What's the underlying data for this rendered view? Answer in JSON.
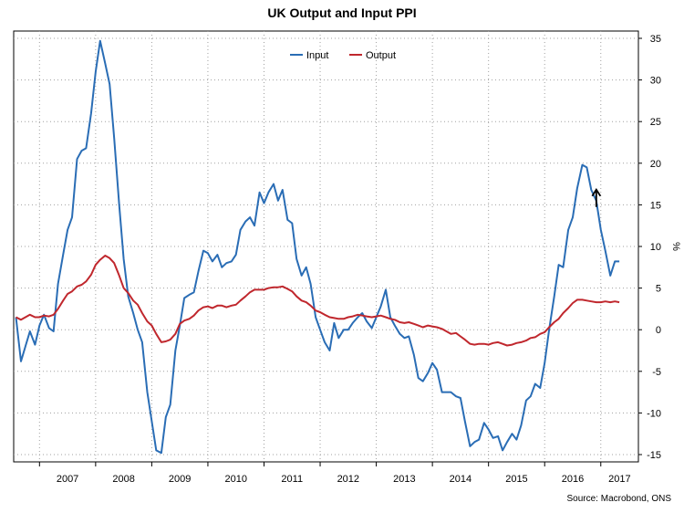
{
  "chart_data": {
    "type": "line",
    "title": "UK Output and Input PPI",
    "ylabel": "%",
    "xlabel": "",
    "ylim": [
      -15,
      35
    ],
    "y_ticks": [
      35,
      30,
      25,
      20,
      15,
      10,
      5,
      0,
      -5,
      -10,
      -15
    ],
    "x_range": [
      2006.54,
      2017.67
    ],
    "year_labels": [
      "2007",
      "2008",
      "2009",
      "2010",
      "2011",
      "2012",
      "2013",
      "2014",
      "2015",
      "2016",
      "2017"
    ],
    "grid": true,
    "legend_position": "top-center",
    "series": [
      {
        "name": "Input",
        "color": "#2a6db5",
        "points": [
          [
            2006.58,
            1.5
          ],
          [
            2006.67,
            -3.8
          ],
          [
            2006.75,
            -2.0
          ],
          [
            2006.83,
            -0.2
          ],
          [
            2006.92,
            -1.8
          ],
          [
            2007.0,
            0.5
          ],
          [
            2007.08,
            1.8
          ],
          [
            2007.17,
            0.2
          ],
          [
            2007.25,
            -0.2
          ],
          [
            2007.33,
            5.5
          ],
          [
            2007.42,
            9.0
          ],
          [
            2007.5,
            12.0
          ],
          [
            2007.58,
            13.5
          ],
          [
            2007.67,
            20.5
          ],
          [
            2007.75,
            21.5
          ],
          [
            2007.83,
            21.8
          ],
          [
            2007.92,
            26.0
          ],
          [
            2008.0,
            31.0
          ],
          [
            2008.08,
            34.7
          ],
          [
            2008.17,
            32.0
          ],
          [
            2008.25,
            29.5
          ],
          [
            2008.33,
            23.0
          ],
          [
            2008.42,
            15.0
          ],
          [
            2008.5,
            8.5
          ],
          [
            2008.58,
            4.0
          ],
          [
            2008.67,
            2.0
          ],
          [
            2008.75,
            0.0
          ],
          [
            2008.83,
            -1.5
          ],
          [
            2008.92,
            -7.5
          ],
          [
            2009.0,
            -11.0
          ],
          [
            2009.08,
            -14.5
          ],
          [
            2009.17,
            -14.8
          ],
          [
            2009.25,
            -10.5
          ],
          [
            2009.33,
            -9.0
          ],
          [
            2009.42,
            -2.5
          ],
          [
            2009.5,
            0.5
          ],
          [
            2009.58,
            3.8
          ],
          [
            2009.67,
            4.2
          ],
          [
            2009.75,
            4.5
          ],
          [
            2009.83,
            7.0
          ],
          [
            2009.92,
            9.5
          ],
          [
            2010.0,
            9.2
          ],
          [
            2010.08,
            8.2
          ],
          [
            2010.17,
            9.0
          ],
          [
            2010.25,
            7.5
          ],
          [
            2010.33,
            8.0
          ],
          [
            2010.42,
            8.2
          ],
          [
            2010.5,
            9.0
          ],
          [
            2010.58,
            12.0
          ],
          [
            2010.67,
            13.0
          ],
          [
            2010.75,
            13.5
          ],
          [
            2010.83,
            12.5
          ],
          [
            2010.92,
            16.5
          ],
          [
            2011.0,
            15.2
          ],
          [
            2011.08,
            16.5
          ],
          [
            2011.17,
            17.5
          ],
          [
            2011.25,
            15.5
          ],
          [
            2011.33,
            16.8
          ],
          [
            2011.42,
            13.2
          ],
          [
            2011.5,
            12.8
          ],
          [
            2011.58,
            8.5
          ],
          [
            2011.67,
            6.5
          ],
          [
            2011.75,
            7.5
          ],
          [
            2011.83,
            5.5
          ],
          [
            2011.92,
            1.5
          ],
          [
            2012.0,
            0.0
          ],
          [
            2012.08,
            -1.5
          ],
          [
            2012.17,
            -2.5
          ],
          [
            2012.25,
            0.8
          ],
          [
            2012.33,
            -1.0
          ],
          [
            2012.42,
            0.0
          ],
          [
            2012.5,
            0.0
          ],
          [
            2012.58,
            0.8
          ],
          [
            2012.67,
            1.5
          ],
          [
            2012.75,
            2.0
          ],
          [
            2012.83,
            1.0
          ],
          [
            2012.92,
            0.2
          ],
          [
            2013.0,
            1.5
          ],
          [
            2013.08,
            2.8
          ],
          [
            2013.17,
            4.8
          ],
          [
            2013.25,
            1.5
          ],
          [
            2013.33,
            0.5
          ],
          [
            2013.42,
            -0.5
          ],
          [
            2013.5,
            -1.0
          ],
          [
            2013.58,
            -0.8
          ],
          [
            2013.67,
            -3.0
          ],
          [
            2013.75,
            -5.8
          ],
          [
            2013.83,
            -6.2
          ],
          [
            2013.92,
            -5.2
          ],
          [
            2014.0,
            -4.0
          ],
          [
            2014.08,
            -4.8
          ],
          [
            2014.17,
            -7.5
          ],
          [
            2014.25,
            -7.5
          ],
          [
            2014.33,
            -7.5
          ],
          [
            2014.42,
            -8.0
          ],
          [
            2014.5,
            -8.2
          ],
          [
            2014.58,
            -11.0
          ],
          [
            2014.67,
            -14.0
          ],
          [
            2014.75,
            -13.5
          ],
          [
            2014.83,
            -13.2
          ],
          [
            2014.92,
            -11.2
          ],
          [
            2015.0,
            -12.0
          ],
          [
            2015.08,
            -13.0
          ],
          [
            2015.17,
            -12.8
          ],
          [
            2015.25,
            -14.5
          ],
          [
            2015.33,
            -13.5
          ],
          [
            2015.42,
            -12.5
          ],
          [
            2015.5,
            -13.2
          ],
          [
            2015.58,
            -11.5
          ],
          [
            2015.67,
            -8.5
          ],
          [
            2015.75,
            -8.0
          ],
          [
            2015.83,
            -6.5
          ],
          [
            2015.92,
            -7.0
          ],
          [
            2016.0,
            -4.0
          ],
          [
            2016.08,
            0.0
          ],
          [
            2016.17,
            4.0
          ],
          [
            2016.25,
            7.8
          ],
          [
            2016.33,
            7.5
          ],
          [
            2016.42,
            12.0
          ],
          [
            2016.5,
            13.5
          ],
          [
            2016.58,
            17.0
          ],
          [
            2016.67,
            19.8
          ],
          [
            2016.75,
            19.5
          ],
          [
            2016.83,
            16.8
          ],
          [
            2016.92,
            15.5
          ],
          [
            2017.0,
            12.0
          ],
          [
            2017.08,
            9.5
          ],
          [
            2017.17,
            6.5
          ],
          [
            2017.25,
            8.2
          ],
          [
            2017.33,
            8.2
          ]
        ]
      },
      {
        "name": "Output",
        "color": "#c0272d",
        "points": [
          [
            2006.58,
            1.5
          ],
          [
            2006.67,
            1.2
          ],
          [
            2006.75,
            1.5
          ],
          [
            2006.83,
            1.8
          ],
          [
            2006.92,
            1.5
          ],
          [
            2007.0,
            1.5
          ],
          [
            2007.08,
            1.7
          ],
          [
            2007.17,
            1.6
          ],
          [
            2007.25,
            1.8
          ],
          [
            2007.33,
            2.5
          ],
          [
            2007.42,
            3.5
          ],
          [
            2007.5,
            4.3
          ],
          [
            2007.58,
            4.6
          ],
          [
            2007.67,
            5.2
          ],
          [
            2007.75,
            5.4
          ],
          [
            2007.83,
            5.8
          ],
          [
            2007.92,
            6.6
          ],
          [
            2008.0,
            7.8
          ],
          [
            2008.08,
            8.4
          ],
          [
            2008.17,
            8.9
          ],
          [
            2008.25,
            8.6
          ],
          [
            2008.33,
            8.0
          ],
          [
            2008.42,
            6.5
          ],
          [
            2008.5,
            5.0
          ],
          [
            2008.58,
            4.4
          ],
          [
            2008.67,
            3.5
          ],
          [
            2008.75,
            3.0
          ],
          [
            2008.83,
            2.0
          ],
          [
            2008.92,
            1.0
          ],
          [
            2009.0,
            0.5
          ],
          [
            2009.08,
            -0.5
          ],
          [
            2009.17,
            -1.5
          ],
          [
            2009.25,
            -1.4
          ],
          [
            2009.33,
            -1.2
          ],
          [
            2009.42,
            -0.5
          ],
          [
            2009.5,
            0.7
          ],
          [
            2009.58,
            1.1
          ],
          [
            2009.67,
            1.3
          ],
          [
            2009.75,
            1.7
          ],
          [
            2009.83,
            2.3
          ],
          [
            2009.92,
            2.7
          ],
          [
            2010.0,
            2.8
          ],
          [
            2010.08,
            2.6
          ],
          [
            2010.17,
            2.9
          ],
          [
            2010.25,
            2.9
          ],
          [
            2010.33,
            2.7
          ],
          [
            2010.42,
            2.9
          ],
          [
            2010.5,
            3.0
          ],
          [
            2010.58,
            3.5
          ],
          [
            2010.67,
            4.0
          ],
          [
            2010.75,
            4.5
          ],
          [
            2010.83,
            4.8
          ],
          [
            2010.92,
            4.8
          ],
          [
            2011.0,
            4.8
          ],
          [
            2011.08,
            5.0
          ],
          [
            2011.17,
            5.1
          ],
          [
            2011.25,
            5.1
          ],
          [
            2011.33,
            5.2
          ],
          [
            2011.42,
            4.9
          ],
          [
            2011.5,
            4.6
          ],
          [
            2011.58,
            4.0
          ],
          [
            2011.67,
            3.5
          ],
          [
            2011.75,
            3.3
          ],
          [
            2011.83,
            2.9
          ],
          [
            2011.92,
            2.3
          ],
          [
            2012.0,
            2.1
          ],
          [
            2012.08,
            1.8
          ],
          [
            2012.17,
            1.5
          ],
          [
            2012.25,
            1.4
          ],
          [
            2012.33,
            1.3
          ],
          [
            2012.42,
            1.3
          ],
          [
            2012.5,
            1.5
          ],
          [
            2012.58,
            1.6
          ],
          [
            2012.67,
            1.8
          ],
          [
            2012.75,
            1.7
          ],
          [
            2012.83,
            1.6
          ],
          [
            2012.92,
            1.5
          ],
          [
            2013.0,
            1.6
          ],
          [
            2013.08,
            1.7
          ],
          [
            2013.17,
            1.5
          ],
          [
            2013.25,
            1.3
          ],
          [
            2013.33,
            1.2
          ],
          [
            2013.42,
            0.9
          ],
          [
            2013.5,
            0.8
          ],
          [
            2013.58,
            0.9
          ],
          [
            2013.67,
            0.7
          ],
          [
            2013.75,
            0.5
          ],
          [
            2013.83,
            0.3
          ],
          [
            2013.92,
            0.5
          ],
          [
            2014.0,
            0.4
          ],
          [
            2014.08,
            0.3
          ],
          [
            2014.17,
            0.1
          ],
          [
            2014.25,
            -0.2
          ],
          [
            2014.33,
            -0.5
          ],
          [
            2014.42,
            -0.4
          ],
          [
            2014.5,
            -0.8
          ],
          [
            2014.58,
            -1.2
          ],
          [
            2014.67,
            -1.7
          ],
          [
            2014.75,
            -1.8
          ],
          [
            2014.83,
            -1.7
          ],
          [
            2014.92,
            -1.7
          ],
          [
            2015.0,
            -1.8
          ],
          [
            2015.08,
            -1.6
          ],
          [
            2015.17,
            -1.5
          ],
          [
            2015.25,
            -1.7
          ],
          [
            2015.33,
            -1.9
          ],
          [
            2015.42,
            -1.8
          ],
          [
            2015.5,
            -1.6
          ],
          [
            2015.58,
            -1.5
          ],
          [
            2015.67,
            -1.3
          ],
          [
            2015.75,
            -1.0
          ],
          [
            2015.83,
            -0.9
          ],
          [
            2015.92,
            -0.5
          ],
          [
            2016.0,
            -0.3
          ],
          [
            2016.08,
            0.3
          ],
          [
            2016.17,
            0.9
          ],
          [
            2016.25,
            1.3
          ],
          [
            2016.33,
            2.0
          ],
          [
            2016.42,
            2.6
          ],
          [
            2016.5,
            3.2
          ],
          [
            2016.58,
            3.6
          ],
          [
            2016.67,
            3.6
          ],
          [
            2016.75,
            3.5
          ],
          [
            2016.83,
            3.4
          ],
          [
            2016.92,
            3.3
          ],
          [
            2017.0,
            3.3
          ],
          [
            2017.08,
            3.4
          ],
          [
            2017.17,
            3.3
          ],
          [
            2017.25,
            3.4
          ],
          [
            2017.33,
            3.3
          ]
        ]
      }
    ],
    "annotations": [
      {
        "type": "arrow",
        "direction": "up",
        "x": 2016.92,
        "y": 16.5
      }
    ]
  },
  "source": "Source: Macrobond, ONS"
}
